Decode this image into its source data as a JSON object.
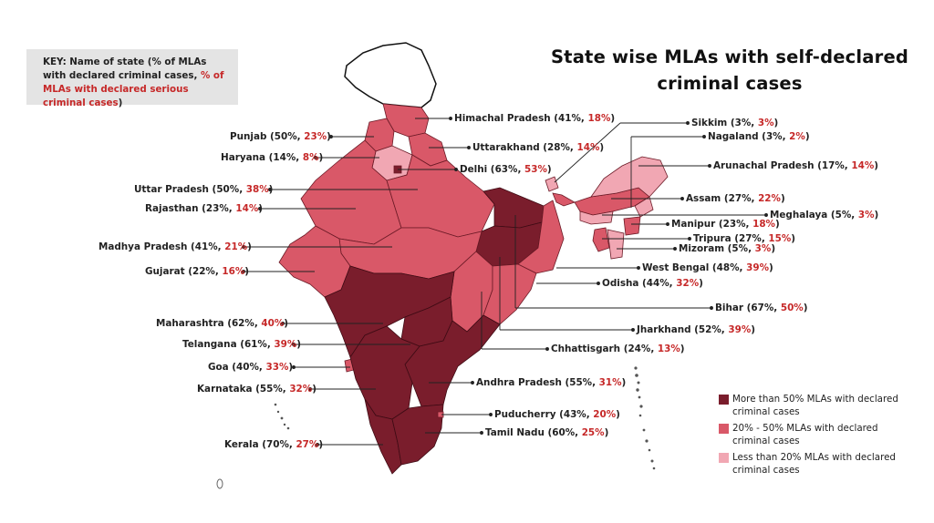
{
  "title": "State wise MLAs with self-declared criminal cases",
  "key": {
    "prefix": "KEY: Name of state (% of MLAs with declared criminal cases, ",
    "highlight": "% of MLAs with declared serious criminal cases",
    "suffix": ")"
  },
  "colors": {
    "dark": "#7a1d2c",
    "mid": "#d95868",
    "light": "#f1a7b3",
    "blank": "#ffffff",
    "serious_text": "#c62828",
    "key_bg": "#e4e4e4"
  },
  "states": [
    {
      "name": "Himachal Pradesh",
      "criminal": "41%",
      "serious": "18%",
      "category": "mid"
    },
    {
      "name": "Punjab",
      "criminal": "50%",
      "serious": "23%",
      "category": "mid"
    },
    {
      "name": "Uttarakhand",
      "criminal": "28%",
      "serious": "14%",
      "category": "mid"
    },
    {
      "name": "Haryana",
      "criminal": "14%",
      "serious": "8%",
      "category": "light"
    },
    {
      "name": "Delhi",
      "criminal": "63%",
      "serious": "53%",
      "category": "dark"
    },
    {
      "name": "Uttar Pradesh",
      "criminal": "50%",
      "serious": "38%",
      "category": "mid"
    },
    {
      "name": "Rajasthan",
      "criminal": "23%",
      "serious": "14%",
      "category": "mid"
    },
    {
      "name": "Madhya Pradesh",
      "criminal": "41%",
      "serious": "21%",
      "category": "mid"
    },
    {
      "name": "Gujarat",
      "criminal": "22%",
      "serious": "16%",
      "category": "mid"
    },
    {
      "name": "Sikkim",
      "criminal": "3%",
      "serious": "3%",
      "category": "light"
    },
    {
      "name": "Nagaland",
      "criminal": "3%",
      "serious": "2%",
      "category": "light"
    },
    {
      "name": "Arunachal Pradesh",
      "criminal": "17%",
      "serious": "14%",
      "category": "light"
    },
    {
      "name": "Assam",
      "criminal": "27%",
      "serious": "22%",
      "category": "mid"
    },
    {
      "name": "Meghalaya",
      "criminal": "5%",
      "serious": "3%",
      "category": "light"
    },
    {
      "name": "Manipur",
      "criminal": "23%",
      "serious": "18%",
      "category": "mid"
    },
    {
      "name": "Tripura",
      "criminal": "27%",
      "serious": "15%",
      "category": "mid"
    },
    {
      "name": "Mizoram",
      "criminal": "5%",
      "serious": "3%",
      "category": "light"
    },
    {
      "name": "West Bengal",
      "criminal": "48%",
      "serious": "39%",
      "category": "mid"
    },
    {
      "name": "Odisha",
      "criminal": "44%",
      "serious": "32%",
      "category": "mid"
    },
    {
      "name": "Bihar",
      "criminal": "67%",
      "serious": "50%",
      "category": "dark"
    },
    {
      "name": "Jharkhand",
      "criminal": "52%",
      "serious": "39%",
      "category": "dark"
    },
    {
      "name": "Chhattisgarh",
      "criminal": "24%",
      "serious": "13%",
      "category": "mid"
    },
    {
      "name": "Maharashtra",
      "criminal": "62%",
      "serious": "40%",
      "category": "dark"
    },
    {
      "name": "Telangana",
      "criminal": "61%",
      "serious": "39%",
      "category": "dark"
    },
    {
      "name": "Goa",
      "criminal": "40%",
      "serious": "33%",
      "category": "mid"
    },
    {
      "name": "Karnataka",
      "criminal": "55%",
      "serious": "32%",
      "category": "dark"
    },
    {
      "name": "Andhra Pradesh",
      "criminal": "55%",
      "serious": "31%",
      "category": "dark"
    },
    {
      "name": "Puducherry",
      "criminal": "43%",
      "serious": "20%",
      "category": "mid"
    },
    {
      "name": "Tamil Nadu",
      "criminal": "60%",
      "serious": "25%",
      "category": "dark"
    },
    {
      "name": "Kerala",
      "criminal": "70%",
      "serious": "27%",
      "category": "dark"
    }
  ],
  "legend": [
    {
      "key": "dark",
      "text": "More than 50% MLAs with declared criminal cases"
    },
    {
      "key": "mid",
      "text": "20% - 50% MLAs with declared criminal cases"
    },
    {
      "key": "light",
      "text": "Less than 20% MLAs with declared criminal cases"
    }
  ]
}
